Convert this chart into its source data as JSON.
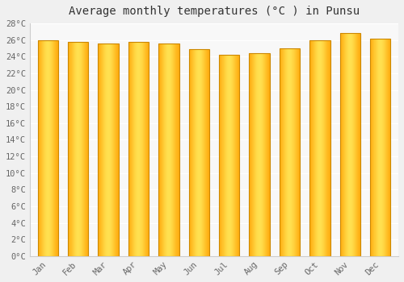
{
  "months": [
    "Jan",
    "Feb",
    "Mar",
    "Apr",
    "May",
    "Jun",
    "Jul",
    "Aug",
    "Sep",
    "Oct",
    "Nov",
    "Dec"
  ],
  "values": [
    26.0,
    25.8,
    25.6,
    25.8,
    25.6,
    24.9,
    24.2,
    24.4,
    25.0,
    26.0,
    26.8,
    26.2
  ],
  "title": "Average monthly temperatures (°C ) in Punsu",
  "ylim": [
    0,
    28
  ],
  "yticks": [
    0,
    2,
    4,
    6,
    8,
    10,
    12,
    14,
    16,
    18,
    20,
    22,
    24,
    26,
    28
  ],
  "bar_color_center": "#FFD740",
  "bar_color_edge": "#FFA000",
  "bar_border_color": "#B8860B",
  "background_color": "#f0f0f0",
  "plot_bg_color": "#f8f8f8",
  "grid_color": "#ffffff",
  "title_fontsize": 10,
  "tick_fontsize": 7.5,
  "title_font_family": "monospace",
  "tick_font_family": "monospace"
}
